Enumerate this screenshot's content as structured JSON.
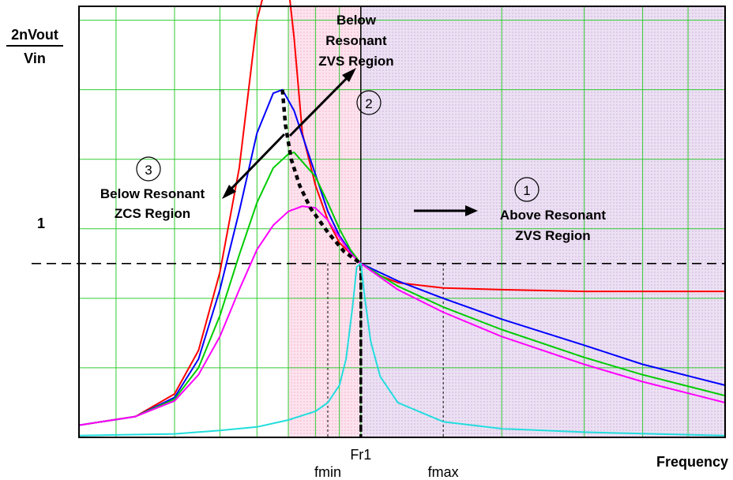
{
  "chart_data": {
    "type": "line",
    "title": "",
    "xlabel": "Frequency",
    "ylabel_top": "2nVout",
    "ylabel_bottom": "Vin",
    "y_tick_label": "1",
    "x_scale": "log",
    "x_ticks": [
      {
        "label": "fmin",
        "x": 0.85
      },
      {
        "label": "Fr1",
        "x": 1.0
      },
      {
        "label": "fmax",
        "x": 1.5
      }
    ],
    "ylim": [
      0,
      2.48
    ],
    "xlim": [
      0.25,
      6.0
    ],
    "grid": true,
    "reference_line_y": 1,
    "regions": [
      {
        "id": "above",
        "number": "1",
        "lines": [
          "Above Resonant",
          "ZVS Region"
        ],
        "x_range": [
          1.0,
          6.0
        ],
        "color": "#e6d3ef"
      },
      {
        "id": "below_zvs",
        "number": "2",
        "lines": [
          "Below",
          "Resonant",
          "ZVS Region"
        ],
        "x_range": [
          0.7,
          1.0
        ],
        "color": "#fbd4e4"
      },
      {
        "id": "below_zcs",
        "number": "3",
        "lines": [
          "Below Resonant",
          "ZCS Region"
        ]
      }
    ],
    "series": [
      {
        "color": "#ff0000",
        "points": [
          [
            0.25,
            0.07
          ],
          [
            0.33,
            0.12
          ],
          [
            0.4,
            0.25
          ],
          [
            0.45,
            0.5
          ],
          [
            0.5,
            0.95
          ],
          [
            0.55,
            1.55
          ],
          [
            0.6,
            2.4
          ],
          [
            0.62,
            2.55
          ],
          [
            0.7,
            2.6
          ],
          [
            0.72,
            2.3
          ],
          [
            0.75,
            1.75
          ],
          [
            0.8,
            1.45
          ],
          [
            0.85,
            1.25
          ],
          [
            0.9,
            1.12
          ],
          [
            1.0,
            1.0
          ],
          [
            1.1,
            0.93
          ],
          [
            1.2,
            0.89
          ],
          [
            1.5,
            0.86
          ],
          [
            2.0,
            0.85
          ],
          [
            3.0,
            0.84
          ],
          [
            6.0,
            0.84
          ]
        ]
      },
      {
        "color": "#0000ff",
        "points": [
          [
            0.25,
            0.07
          ],
          [
            0.33,
            0.12
          ],
          [
            0.4,
            0.23
          ],
          [
            0.45,
            0.45
          ],
          [
            0.5,
            0.85
          ],
          [
            0.55,
            1.3
          ],
          [
            0.6,
            1.75
          ],
          [
            0.65,
            1.98
          ],
          [
            0.68,
            2.0
          ],
          [
            0.72,
            1.88
          ],
          [
            0.78,
            1.6
          ],
          [
            0.85,
            1.3
          ],
          [
            0.9,
            1.16
          ],
          [
            0.95,
            1.07
          ],
          [
            1.0,
            1.0
          ],
          [
            1.2,
            0.9
          ],
          [
            1.5,
            0.8
          ],
          [
            2.0,
            0.68
          ],
          [
            3.0,
            0.53
          ],
          [
            4.0,
            0.42
          ],
          [
            6.0,
            0.3
          ]
        ]
      },
      {
        "color": "#00cc00",
        "points": [
          [
            0.25,
            0.07
          ],
          [
            0.33,
            0.12
          ],
          [
            0.4,
            0.22
          ],
          [
            0.45,
            0.4
          ],
          [
            0.5,
            0.7
          ],
          [
            0.55,
            1.05
          ],
          [
            0.6,
            1.35
          ],
          [
            0.65,
            1.55
          ],
          [
            0.7,
            1.63
          ],
          [
            0.72,
            1.64
          ],
          [
            0.8,
            1.5
          ],
          [
            0.85,
            1.35
          ],
          [
            0.9,
            1.2
          ],
          [
            0.95,
            1.08
          ],
          [
            1.0,
            1.0
          ],
          [
            1.2,
            0.87
          ],
          [
            1.5,
            0.75
          ],
          [
            2.0,
            0.62
          ],
          [
            3.0,
            0.46
          ],
          [
            4.0,
            0.36
          ],
          [
            6.0,
            0.24
          ]
        ]
      },
      {
        "color": "#ff00ff",
        "points": [
          [
            0.25,
            0.07
          ],
          [
            0.33,
            0.12
          ],
          [
            0.4,
            0.21
          ],
          [
            0.45,
            0.36
          ],
          [
            0.5,
            0.58
          ],
          [
            0.55,
            0.85
          ],
          [
            0.6,
            1.08
          ],
          [
            0.65,
            1.22
          ],
          [
            0.7,
            1.3
          ],
          [
            0.75,
            1.33
          ],
          [
            0.8,
            1.32
          ],
          [
            0.85,
            1.25
          ],
          [
            0.9,
            1.15
          ],
          [
            0.95,
            1.06
          ],
          [
            1.0,
            1.0
          ],
          [
            1.2,
            0.85
          ],
          [
            1.5,
            0.72
          ],
          [
            2.0,
            0.58
          ],
          [
            3.0,
            0.42
          ],
          [
            4.0,
            0.32
          ],
          [
            6.0,
            0.2
          ]
        ]
      },
      {
        "color": "#22dddd",
        "points": [
          [
            0.25,
            0.01
          ],
          [
            0.4,
            0.02
          ],
          [
            0.5,
            0.04
          ],
          [
            0.6,
            0.06
          ],
          [
            0.7,
            0.1
          ],
          [
            0.8,
            0.15
          ],
          [
            0.85,
            0.2
          ],
          [
            0.9,
            0.3
          ],
          [
            0.93,
            0.45
          ],
          [
            0.96,
            0.75
          ],
          [
            0.98,
            0.98
          ],
          [
            1.0,
            1.0
          ],
          [
            1.02,
            0.8
          ],
          [
            1.05,
            0.55
          ],
          [
            1.1,
            0.35
          ],
          [
            1.2,
            0.2
          ],
          [
            1.5,
            0.09
          ],
          [
            2.0,
            0.05
          ],
          [
            3.0,
            0.03
          ],
          [
            6.0,
            0.01
          ]
        ]
      }
    ],
    "boundary_curve": [
      [
        0.68,
        2.0
      ],
      [
        0.69,
        1.8
      ],
      [
        0.71,
        1.6
      ],
      [
        0.74,
        1.45
      ],
      [
        0.78,
        1.32
      ],
      [
        0.85,
        1.18
      ],
      [
        0.92,
        1.07
      ],
      [
        1.0,
        1.0
      ]
    ]
  }
}
